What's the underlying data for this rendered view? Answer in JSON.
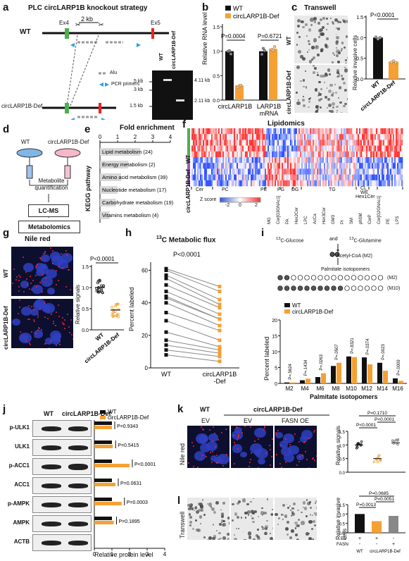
{
  "panel_letters": [
    "a",
    "b",
    "c",
    "d",
    "e",
    "f",
    "g",
    "h",
    "i",
    "j",
    "k",
    "l"
  ],
  "colors": {
    "wt": "#111111",
    "def": "#f5a033",
    "green": "#4caf50",
    "purple": "#9c5cb4",
    "heat_red": "#e33",
    "heat_blue": "#3356c8"
  },
  "a": {
    "title": "PLC circLARP1B knockout strategy",
    "ex4": "Ex4",
    "ex5": "Ex5",
    "dist": "2 kb",
    "wt": "WT",
    "def": "circLARP1B-Def",
    "legend_alu": "Alu",
    "legend_pcr": "PCR primers",
    "gel_lanes": [
      "WT",
      "circLARP1B-Def"
    ],
    "gel_markers": [
      "5 kb",
      "3 kb",
      "1.5 kb"
    ],
    "gel_bands": [
      "4.11 kb",
      "2.11 kb"
    ]
  },
  "b": {
    "legend": [
      "WT",
      "circLARP1B-Def"
    ],
    "ylabel": "Relative RNA level",
    "p1": "P=0.0004",
    "p2": "P=0.6721",
    "xlabels": [
      "circLARP1B",
      "LARP1B mRNA"
    ],
    "yticks": [
      "0.0",
      "0.5",
      "1.0",
      "1.5"
    ]
  },
  "c": {
    "title": "Transwell",
    "row_labels": [
      "WT",
      "circLARP1B-Def"
    ],
    "ylabel": "Relative invasive cells",
    "p": "P<0.0001",
    "yticks": [
      "0.0",
      "0.5",
      "1.0",
      "1.5"
    ],
    "xlabels": [
      "WT",
      "circLARP1B-Def"
    ]
  },
  "d": {
    "wt": "WT",
    "def": "circLARP1B-Def",
    "step1": "Metabolite quantification",
    "step2": "LC-MS",
    "step3": "Metabolomics"
  },
  "e": {
    "title": "Fold enrichment",
    "xticks": [
      "0",
      "1",
      "2",
      "3",
      "4"
    ],
    "ylabel": "KEGG pathway",
    "pathways": [
      "Lipid metabolism (24)",
      "Energy metabolism (2)",
      "Amino acid metabolism (39)",
      "Nucleotide metabolism (17)",
      "Carbohydrate metabolism (19)",
      "Vitamins metabolism (4)"
    ]
  },
  "f": {
    "title": "Lipidomics",
    "wt": "WT",
    "def": "circLARP1B-Def",
    "top_classes": [
      "Cer",
      "PC",
      "PE",
      "PG",
      "DG",
      "TG",
      "CL",
      "WE",
      "Hex1Cer"
    ],
    "bottom_classes": [
      "MG",
      "Cer[G3GNAc1]",
      "PA",
      "Hex2Cer",
      "LPC",
      "AcCa",
      "Hex3Cer",
      "GM3",
      "PI",
      "SM",
      "phSM",
      "CerP",
      "Cer[G2GNAc1]",
      "PE",
      "LPS"
    ],
    "zscore": "Z score",
    "zticks": [
      "-2",
      "0",
      "2"
    ]
  },
  "g": {
    "title": "Nile red",
    "row_labels": [
      "WT",
      "circLARP1B-Def"
    ],
    "ylabel": "Relative signals",
    "p": "P<0.0001",
    "yticks": [
      "0.0",
      "0.5",
      "1.0",
      "1.5"
    ],
    "xlabels": [
      "WT",
      "circLARP1B-Def"
    ]
  },
  "h": {
    "title_sup": "13",
    "title": "C Metabolic flux",
    "p": "P<0.0001",
    "ylabel": "Percent labeled",
    "yticks": [
      "0",
      "20",
      "40",
      "60"
    ],
    "xlabels": [
      "WT",
      "circLARP1B-Def"
    ]
  },
  "i": {
    "glucose": "C-Glucose",
    "glutamine": "C-Glutamine",
    "sup": "13",
    "and": "and",
    "acetyl": "Acetyl-CoA (M2)",
    "palmitate": "Palmitate isotopomers",
    "m2": "(M2)",
    "m10": "(M10)",
    "legend": [
      "WT",
      "circLARP1B-Def"
    ],
    "ylabel": "Percent labeled",
    "xlabel": "Palmitate isotopomers",
    "yticks": [
      "0",
      "5",
      "10",
      "15",
      "20"
    ],
    "pvals": [
      "P=.5624",
      "P=.1434",
      "P=.0263",
      "P=.0507",
      "P=.8321",
      "P=.0374",
      "P=.0023",
      "P=.0009"
    ]
  },
  "j": {
    "cols": [
      "WT",
      "circLARP1B-Def"
    ],
    "proteins": [
      "p-ULK1",
      "ULK1",
      "p-ACC1",
      "ACC1",
      "p-AMPK",
      "AMPK",
      "ACTB"
    ],
    "legend": [
      "WT",
      "circLARP1B-Def"
    ],
    "pvals": [
      "P=0.9343",
      "P=0.5415",
      "P<0.0001",
      "P=0.0631",
      "P=0.0003",
      "P=0.1895"
    ],
    "xlabel": "Relative protein level",
    "xticks": [
      "0",
      "1",
      "2",
      "3",
      "4"
    ]
  },
  "k": {
    "wt": "WT",
    "def": "circLARP1B-Def",
    "cols": [
      "EV",
      "EV",
      "FASN OE"
    ],
    "row": "Nile red",
    "ylabel": "Relative signals",
    "pvals": [
      "P=0.1710",
      "P<0.0001",
      "P<0.0001"
    ],
    "yticks": [
      "0.0",
      "0.5",
      "1.0",
      "1.5"
    ]
  },
  "l": {
    "row": "Transwell",
    "ylabel": "Relative invasive cells",
    "pvals": [
      "P=0.0685",
      "P=0.0051",
      "P=0.0013"
    ],
    "yticks": [
      "0.0",
      "0.5",
      "1.0",
      "1.5"
    ],
    "ev": "EV",
    "fasn": "FASN",
    "signs": [
      "+",
      "+",
      "-",
      "-",
      "-",
      "+"
    ],
    "xlabels": [
      "WT",
      "circLARP1B-Def"
    ]
  },
  "chart_data": [
    {
      "panel": "b",
      "type": "bar",
      "categories": [
        "circLARP1B",
        "LARP1B mRNA"
      ],
      "series": [
        {
          "name": "WT",
          "values": [
            1.0,
            1.0
          ]
        },
        {
          "name": "circLARP1B-Def",
          "values": [
            0.3,
            1.05
          ]
        }
      ],
      "ylabel": "Relative RNA level",
      "ylim": [
        0,
        1.5
      ]
    },
    {
      "panel": "c",
      "type": "bar",
      "categories": [
        "WT",
        "circLARP1B-Def"
      ],
      "values": [
        1.0,
        0.42
      ],
      "ylabel": "Relative invasive cells",
      "ylim": [
        0,
        1.5
      ]
    },
    {
      "panel": "e",
      "type": "bar",
      "orientation": "horizontal",
      "categories": [
        "Lipid metabolism (24)",
        "Energy metabolism (2)",
        "Amino acid metabolism (39)",
        "Nucleotide metabolism (17)",
        "Carbohydrate metabolism (19)",
        "Vitamins metabolism (4)"
      ],
      "values": [
        2.3,
        1.6,
        1.2,
        1.0,
        0.9,
        0.55
      ],
      "xlim": [
        0,
        4
      ]
    },
    {
      "panel": "g",
      "type": "scatter",
      "categories": [
        "WT",
        "circLARP1B-Def"
      ],
      "values": [
        1.0,
        0.47
      ],
      "ylabel": "Relative signals",
      "ylim": [
        0,
        1.5
      ]
    },
    {
      "panel": "h",
      "type": "line",
      "categories": [
        "WT",
        "circLARP1B-Def"
      ],
      "pairs": [
        [
          61,
          50
        ],
        [
          60,
          47
        ],
        [
          57,
          42
        ],
        [
          55,
          39
        ],
        [
          51,
          37
        ],
        [
          47,
          33
        ],
        [
          44,
          30
        ],
        [
          43,
          30
        ],
        [
          40,
          26
        ],
        [
          34,
          23
        ],
        [
          29,
          17
        ],
        [
          22,
          13
        ],
        [
          17,
          11
        ],
        [
          14,
          9
        ],
        [
          11,
          7
        ],
        [
          8,
          4
        ]
      ],
      "ylabel": "Percent labeled",
      "ylim": [
        0,
        65
      ]
    },
    {
      "panel": "i",
      "type": "bar",
      "categories": [
        "M2",
        "M4",
        "M6",
        "M8",
        "M10",
        "M12",
        "M14",
        "M16"
      ],
      "series": [
        {
          "name": "WT",
          "values": [
            0.3,
            1.0,
            2.0,
            5.5,
            8.5,
            8.2,
            6.5,
            1.6
          ]
        },
        {
          "name": "circLARP1B-Def",
          "values": [
            0.3,
            1.5,
            3.2,
            6.5,
            8.3,
            6.0,
            4.0,
            0.8
          ]
        }
      ],
      "ylabel": "Percent labeled",
      "xlabel": "Palmitate isotopomers",
      "ylim": [
        0,
        20
      ]
    },
    {
      "panel": "j",
      "type": "bar",
      "orientation": "horizontal",
      "categories": [
        "p-ULK1",
        "ULK1",
        "p-ACC1",
        "ACC1",
        "p-AMPK",
        "AMPK"
      ],
      "series": [
        {
          "name": "WT",
          "values": [
            1.0,
            1.0,
            1.0,
            1.0,
            1.0,
            1.0
          ]
        },
        {
          "name": "circLARP1B-Def",
          "values": [
            1.0,
            1.05,
            2.0,
            1.2,
            1.55,
            1.1
          ]
        }
      ],
      "xlabel": "Relative protein level",
      "xlim": [
        0,
        4
      ]
    },
    {
      "panel": "k",
      "type": "scatter",
      "categories": [
        "WT EV",
        "circLARP1B-Def EV",
        "circLARP1B-Def FASN OE"
      ],
      "values": [
        1.0,
        0.5,
        1.08
      ],
      "ylabel": "Relative signals",
      "ylim": [
        0,
        1.5
      ]
    },
    {
      "panel": "l",
      "type": "bar",
      "categories": [
        "WT",
        "circLARP1B-Def",
        "circLARP1B-Def+FASN"
      ],
      "values": [
        1.0,
        0.62,
        0.9
      ],
      "ylabel": "Relative invasive cells",
      "ylim": [
        0,
        1.5
      ]
    }
  ]
}
